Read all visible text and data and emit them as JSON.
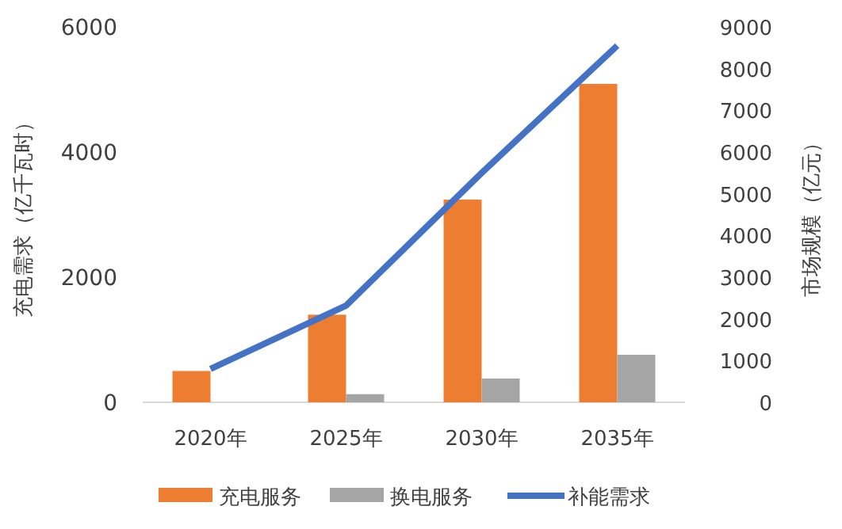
{
  "chart_data": {
    "type": "bar",
    "categories": [
      "2020年",
      "2025年",
      "2030年",
      "2035年"
    ],
    "ylabel": "充电需求（亿千瓦时）",
    "y2label": "市场规模（亿元）",
    "ylim": [
      0,
      6000
    ],
    "yticks": [
      0,
      2000,
      4000,
      6000
    ],
    "y2lim": [
      0,
      9000
    ],
    "y2ticks": [
      0,
      1000,
      2000,
      3000,
      4000,
      5000,
      6000,
      7000,
      8000,
      9000
    ],
    "legend": "bottom",
    "grid": false,
    "series": [
      {
        "name": "充电服务",
        "color": "#ed7d31",
        "values": [
          500,
          1400,
          3240,
          5090
        ]
      },
      {
        "name": "换电服务",
        "color": "#a5a5a5",
        "values": [
          0,
          130,
          380,
          760
        ]
      },
      {
        "name": "补能需求",
        "type": "line",
        "axis": "y2",
        "color": "#4472c4",
        "values": [
          800,
          2320,
          5500,
          8550
        ]
      }
    ]
  }
}
